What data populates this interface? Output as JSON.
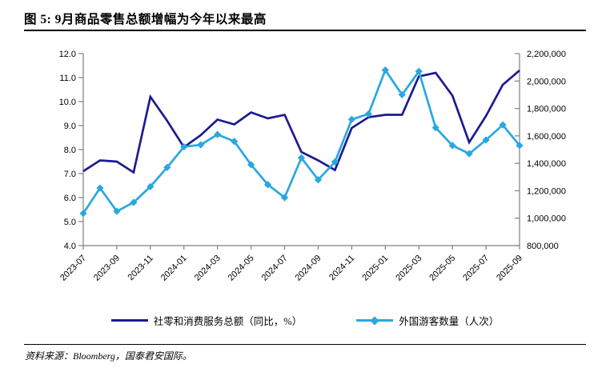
{
  "header": {
    "title": "图 5: 9月商品零售总额增幅为今年以来最高"
  },
  "source": {
    "text": "资料来源：Bloomberg，国泰君安国际。"
  },
  "colors": {
    "series_retail": "#1b1b8f",
    "series_tourists": "#29a8df",
    "axis_line": "#7f7f7f",
    "text": "#000000"
  },
  "chart_data": {
    "type": "line",
    "title": "9月商品零售总额增幅为今年以来最高",
    "grid": false,
    "legend_position": "bottom",
    "categories": [
      "2023-07",
      "2023-08",
      "2023-09",
      "2023-10",
      "2023-11",
      "2023-12",
      "2024-01",
      "2024-02",
      "2024-03",
      "2024-04",
      "2024-05",
      "2024-06",
      "2024-07",
      "2024-08",
      "2024-09",
      "2024-10",
      "2024-11",
      "2024-12",
      "2025-01",
      "2025-02",
      "2025-03",
      "2025-04",
      "2025-05",
      "2025-06",
      "2025-07",
      "2025-08",
      "2025-09"
    ],
    "x_tick_labels": [
      "2023-07",
      "2023-09",
      "2023-11",
      "2024-01",
      "2024-03",
      "2024-05",
      "2024-07",
      "2024-09",
      "2024-11",
      "2025-01",
      "2025-03",
      "2025-05",
      "2025-07",
      "2025-09"
    ],
    "series": [
      {
        "name": "社零和消费服务总额（同比，%）",
        "axis": "left",
        "color": "#1b1b8f",
        "marker": "none",
        "values": [
          7.1,
          7.55,
          7.5,
          7.05,
          10.2,
          9.2,
          8.1,
          8.6,
          9.25,
          9.05,
          9.55,
          9.3,
          9.45,
          7.9,
          7.55,
          7.15,
          8.9,
          9.35,
          9.45,
          9.45,
          11.05,
          11.2,
          10.25,
          8.3,
          9.4,
          10.7,
          11.3
        ]
      },
      {
        "name": "外国游客数量（人次）",
        "axis": "right",
        "color": "#29a8df",
        "marker": "diamond",
        "values": [
          1035000,
          1220000,
          1050000,
          1115000,
          1230000,
          1370000,
          1520000,
          1535000,
          1610000,
          1560000,
          1390000,
          1245000,
          1150000,
          1440000,
          1280000,
          1410000,
          1720000,
          1760000,
          2080000,
          1900000,
          2070000,
          1660000,
          1530000,
          1470000,
          1570000,
          1680000,
          1530000
        ]
      }
    ],
    "axes": {
      "left": {
        "min": 4.0,
        "max": 12.0,
        "step": 1.0,
        "format": "fixed1"
      },
      "right": {
        "min": 800000,
        "max": 2200000,
        "step": 200000,
        "format": "thousands"
      }
    }
  }
}
